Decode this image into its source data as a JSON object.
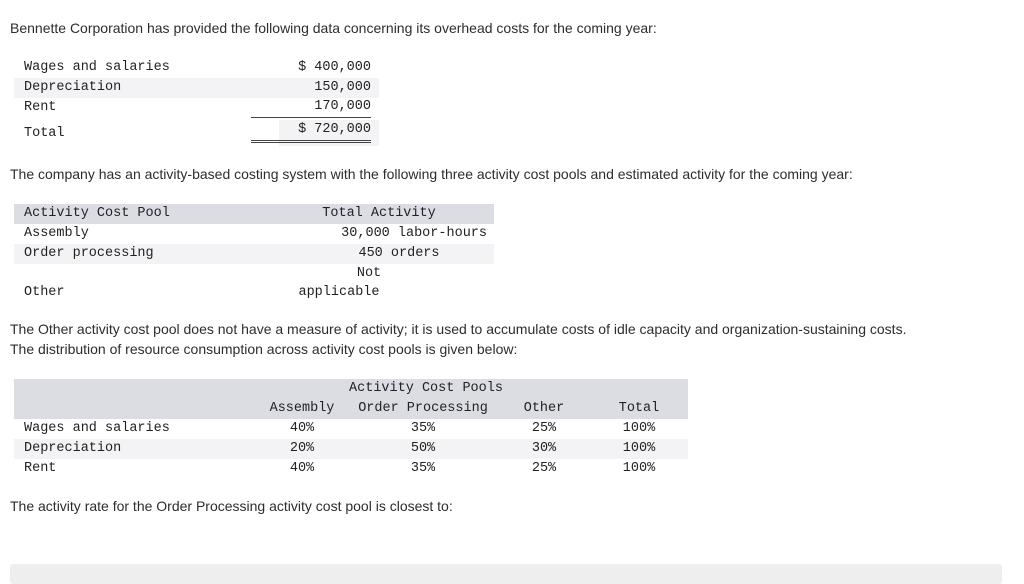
{
  "intro": "Bennette Corporation has provided the following data concerning its overhead costs for the coming year:",
  "overhead": {
    "rows": [
      {
        "label": "Wages and salaries",
        "amount": "$ 400,000"
      },
      {
        "label": "Depreciation",
        "amount": "150,000"
      },
      {
        "label": "Rent",
        "amount": "170,000"
      }
    ],
    "total_label": "Total",
    "total_amount": "$ 720,000"
  },
  "abc_text": "The company has an activity-based costing system with the following three activity cost pools and estimated activity for the coming year:",
  "activity": {
    "header_pool": "Activity Cost Pool",
    "header_total": "Total Activity",
    "rows": [
      {
        "pool": "Assembly",
        "activity": "30,000 labor-hours"
      },
      {
        "pool": "Order processing",
        "activity": "450 orders"
      },
      {
        "pool": "Other",
        "activity_line1": "Not",
        "activity_line2": "applicable"
      }
    ]
  },
  "other_text_1": "The Other activity cost pool does not have a measure of activity; it is used to accumulate costs of idle capacity and organization-sustaining costs.",
  "other_text_2": "The distribution of resource consumption across activity cost pools is given below:",
  "distribution": {
    "group_header": "Activity Cost Pools",
    "columns": [
      "Assembly",
      "Order Processing",
      "Other",
      "Total"
    ],
    "rows": [
      {
        "label": "Wages and salaries",
        "values": [
          "40%",
          "35%",
          "25%",
          "100%"
        ]
      },
      {
        "label": "Depreciation",
        "values": [
          "20%",
          "50%",
          "30%",
          "100%"
        ]
      },
      {
        "label": "Rent",
        "values": [
          "40%",
          "35%",
          "25%",
          "100%"
        ]
      }
    ]
  },
  "question": "The activity rate for the Order Processing activity cost pool is closest to:"
}
